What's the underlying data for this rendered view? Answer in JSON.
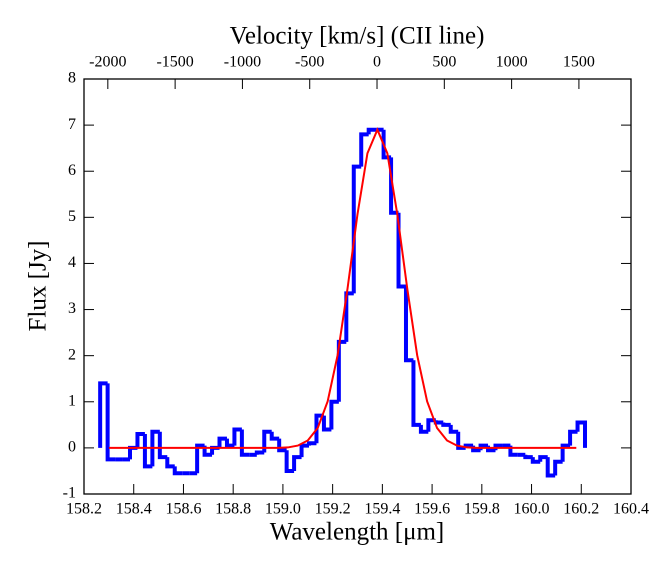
{
  "chart_data": {
    "type": "histogram",
    "title": "Velocity [km/s] (CII line)",
    "xlabel": "Wavelength [μm]",
    "ylabel": "Flux [Jy]",
    "xlim": [
      158.2,
      160.4
    ],
    "xticks": [
      158.2,
      158.4,
      158.6,
      158.8,
      {
        "value": 159,
        "label": "159.0"
      },
      159.2,
      159.4,
      159.6,
      159.8,
      {
        "value": 160,
        "label": "160.0"
      },
      160.2,
      160.4
    ],
    "ylim": [
      -1,
      8
    ],
    "yticks": [
      -1,
      0,
      1,
      2,
      3,
      4,
      5,
      6,
      7,
      8
    ],
    "x2lim": [
      -2177,
      1887
    ],
    "x2ticks": [
      -2000,
      -1500,
      -1000,
      -500,
      0,
      500,
      1000,
      1500
    ],
    "bins": [
      158.265,
      158.295,
      158.325,
      158.355,
      158.385,
      158.415,
      158.445,
      158.475,
      158.505,
      158.535,
      158.565,
      158.595,
      158.625,
      158.655,
      158.685,
      158.715,
      158.745,
      158.775,
      158.805,
      158.835,
      158.865,
      158.895,
      158.925,
      158.955,
      158.985,
      159.015,
      159.045,
      159.075,
      159.105,
      159.135,
      159.165,
      159.195,
      159.225,
      159.255,
      159.285,
      159.315,
      159.345,
      159.375,
      159.405,
      159.435,
      159.465,
      159.495,
      159.525,
      159.555,
      159.585,
      159.615,
      159.645,
      159.675,
      159.705,
      159.735,
      159.765,
      159.795,
      159.825,
      159.855,
      159.885,
      159.915,
      159.945,
      159.975,
      160.005,
      160.035,
      160.065,
      160.095,
      160.125,
      160.155,
      160.185,
      160.215
    ],
    "values": [
      1.4,
      -0.25,
      -0.25,
      -0.25,
      0.0,
      0.3,
      -0.4,
      0.35,
      -0.2,
      -0.4,
      -0.55,
      -0.55,
      -0.55,
      0.05,
      -0.15,
      0.0,
      0.2,
      0.05,
      0.4,
      -0.15,
      -0.15,
      -0.1,
      0.35,
      0.2,
      -0.05,
      -0.5,
      -0.2,
      0.05,
      0.1,
      0.7,
      0.4,
      1.0,
      2.3,
      3.35,
      6.1,
      6.8,
      6.9,
      6.9,
      6.3,
      5.1,
      3.5,
      1.9,
      0.5,
      0.35,
      0.6,
      0.55,
      0.5,
      0.35,
      0.0,
      0.05,
      -0.05,
      0.05,
      -0.05,
      0.05,
      0.05,
      -0.15,
      -0.15,
      -0.2,
      -0.3,
      -0.2,
      -0.6,
      -0.3,
      0.05,
      0.35,
      0.55
    ],
    "color": "#0000ff",
    "fit": {
      "x": [
        158.3,
        158.98,
        159.02,
        159.06,
        159.1,
        159.14,
        159.18,
        159.22,
        159.26,
        159.3,
        159.34,
        159.38,
        159.42,
        159.46,
        159.5,
        159.54,
        159.58,
        159.62,
        159.66,
        159.7,
        159.74,
        159.78,
        160.18
      ],
      "values": [
        0,
        0,
        0.01,
        0.05,
        0.16,
        0.43,
        1.01,
        2.01,
        3.46,
        5.07,
        6.39,
        6.9,
        6.39,
        5.07,
        3.46,
        2.01,
        1.01,
        0.43,
        0.16,
        0.05,
        0.01,
        0,
        0
      ],
      "color": "#ff0000"
    }
  }
}
